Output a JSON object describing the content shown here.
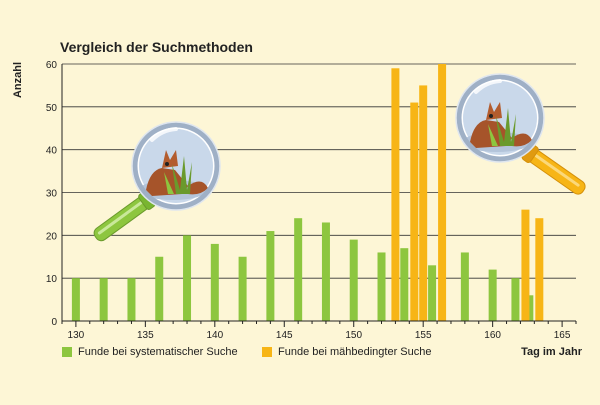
{
  "colors": {
    "background": "#fdf6d6",
    "systematic": "#8dc63f",
    "mowing": "#f7b516",
    "grid": "#333333"
  },
  "chart_data": {
    "type": "bar",
    "title": "Vergleich der Suchmethoden",
    "xlabel": "Tag im Jahr",
    "ylabel": "Anzahl",
    "xlim": [
      129,
      166
    ],
    "ylim": [
      0,
      60
    ],
    "x_ticks": [
      130,
      135,
      140,
      145,
      150,
      155,
      160,
      165
    ],
    "y_ticks": [
      0,
      10,
      20,
      30,
      40,
      50,
      60
    ],
    "grid": "horizontal",
    "legend_position": "bottom",
    "series": [
      {
        "name": "Funde bei systematischer Suche",
        "color": "#8dc63f",
        "points": [
          {
            "x": 130,
            "y": 10
          },
          {
            "x": 132,
            "y": 10
          },
          {
            "x": 134,
            "y": 10
          },
          {
            "x": 136,
            "y": 15
          },
          {
            "x": 138,
            "y": 20
          },
          {
            "x": 140,
            "y": 18
          },
          {
            "x": 142,
            "y": 15
          },
          {
            "x": 144,
            "y": 21
          },
          {
            "x": 146,
            "y": 24
          },
          {
            "x": 148,
            "y": 23
          },
          {
            "x": 150,
            "y": 19
          },
          {
            "x": 152,
            "y": 16
          },
          {
            "x": 154,
            "y": 17
          },
          {
            "x": 156,
            "y": 13
          },
          {
            "x": 158,
            "y": 16
          },
          {
            "x": 160,
            "y": 12
          },
          {
            "x": 162,
            "y": 10
          },
          {
            "x": 163,
            "y": 6
          }
        ]
      },
      {
        "name": "Funde bei mähbedingter Suche",
        "color": "#f7b516",
        "points": [
          {
            "x": 153,
            "y": 59
          },
          {
            "x": 154,
            "y": 51
          },
          {
            "x": 155,
            "y": 55
          },
          {
            "x": 156,
            "y": 60
          },
          {
            "x": 162,
            "y": 26
          },
          {
            "x": 163,
            "y": 24
          }
        ]
      }
    ]
  }
}
